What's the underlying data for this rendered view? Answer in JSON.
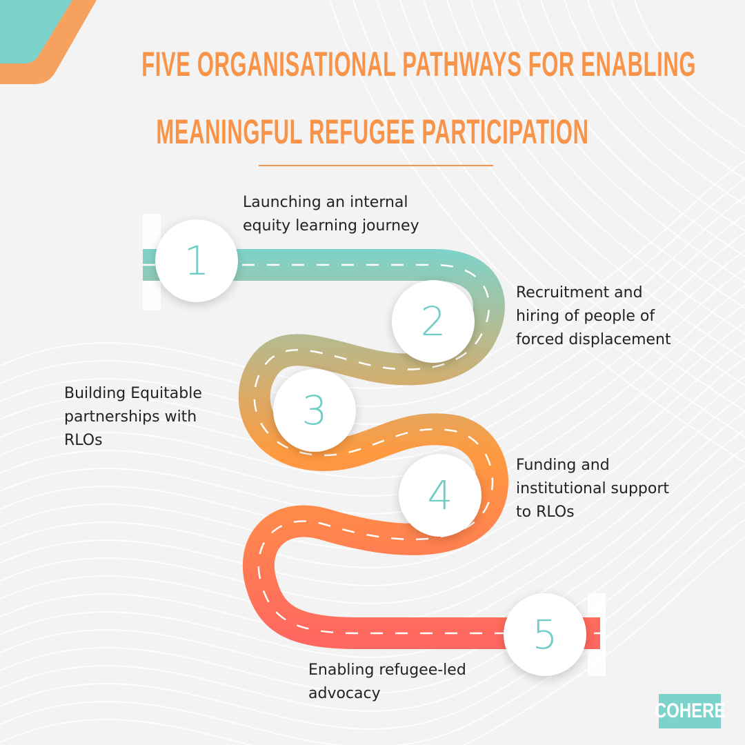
{
  "title": {
    "line1": "FIVE ORGANISATIONAL PATHWAYS FOR ENABLING",
    "line2": "MEANINGFUL REFUGEE PARTICIPATION"
  },
  "steps": [
    {
      "number": "1",
      "label_lines": [
        "Launching an internal",
        "equity learning journey"
      ]
    },
    {
      "number": "2",
      "label_lines": [
        "Recruitment and",
        "hiring of people of",
        "forced displacement"
      ]
    },
    {
      "number": "3",
      "label_lines": [
        "Building Equitable",
        "partnerships with",
        "RLOs"
      ]
    },
    {
      "number": "4",
      "label_lines": [
        "Funding and",
        "institutional support",
        "to RLOs"
      ]
    },
    {
      "number": "5",
      "label_lines": [
        "Enabling refugee-led",
        "advocacy"
      ]
    }
  ],
  "logo": {
    "text": "COHERE"
  },
  "colors": {
    "accent_orange": "#f7944a",
    "teal": "#7dd3cb",
    "road_mid": "#ff8f3e",
    "road_end": "#ff6760",
    "text": "#222222"
  }
}
